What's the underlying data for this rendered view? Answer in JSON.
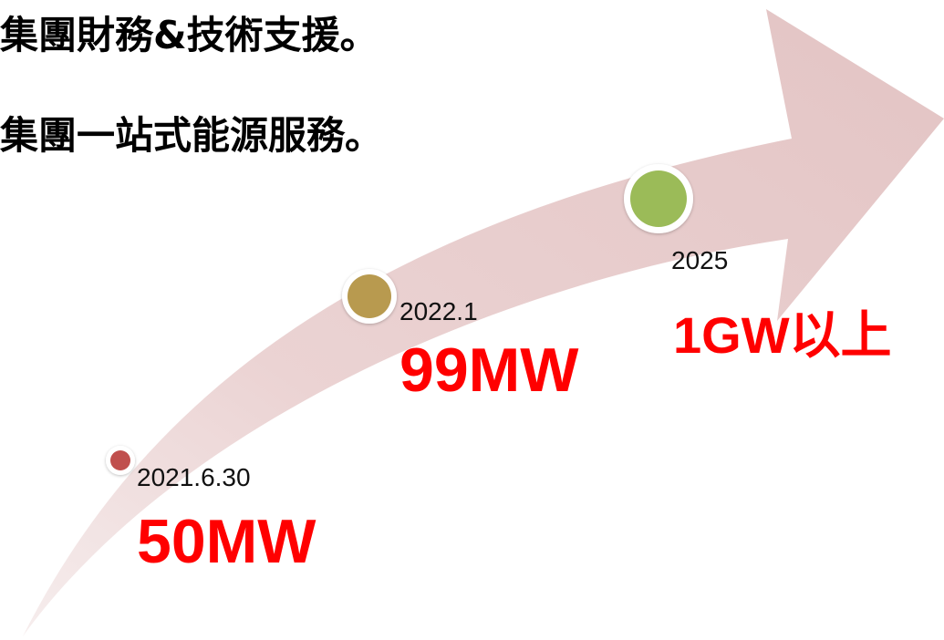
{
  "bullets": [
    "集團財務&技術支援。",
    "集團一站式能源服務。"
  ],
  "milestones": [
    {
      "date": "2021.6.30",
      "value": "50MW",
      "color": "#c0504d"
    },
    {
      "date": "2022.1",
      "value": "99MW",
      "color": "#b89a50"
    },
    {
      "date": "2025",
      "value": "1GW以上",
      "color": "#9bbb59"
    }
  ],
  "colors": {
    "arrow_fill": "#e8cfcf",
    "value_text": "#ff0000",
    "ring": "#ffffff"
  }
}
